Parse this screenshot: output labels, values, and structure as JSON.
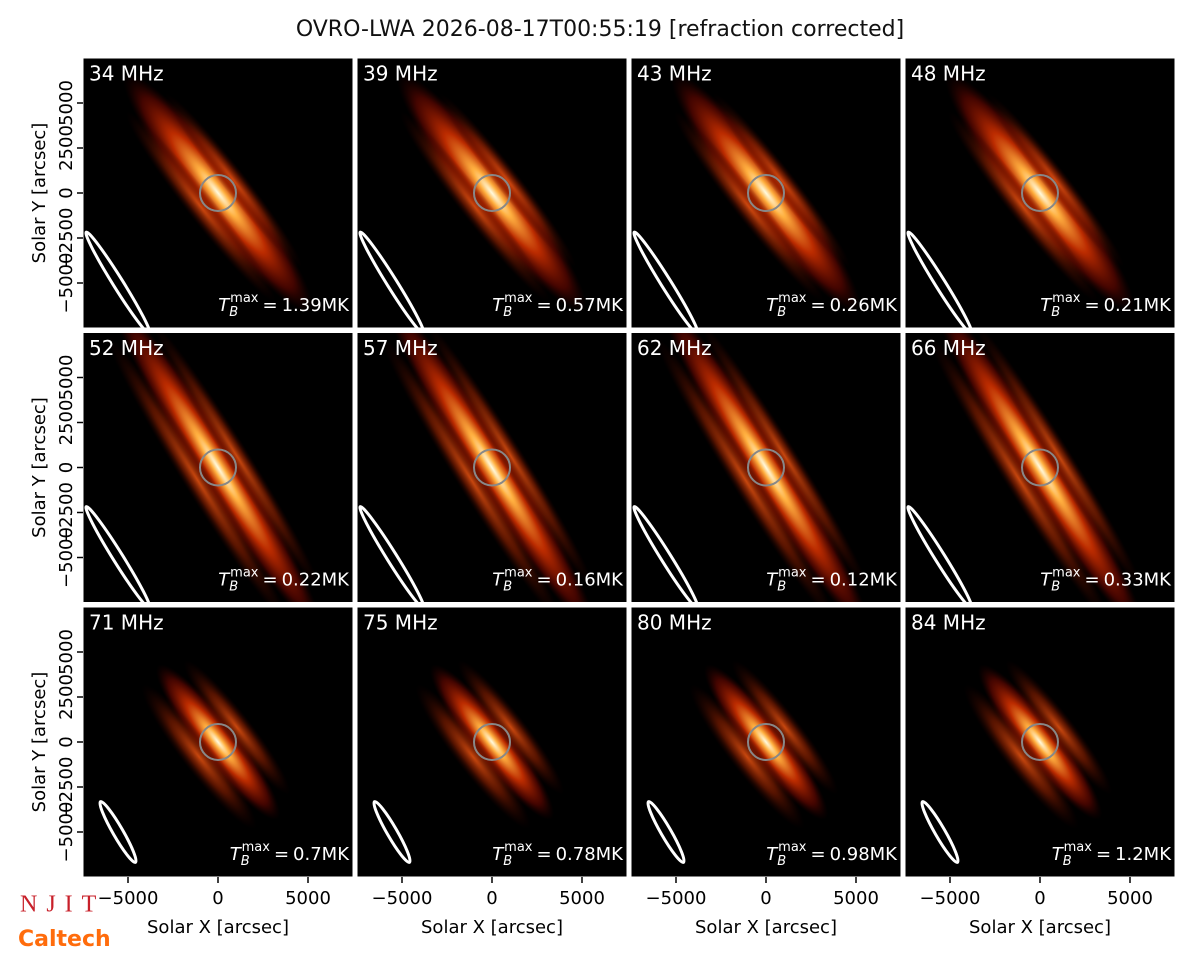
{
  "title": "OVRO-LWA 2026-08-17T00:55:19 [refraction corrected]",
  "logos": [
    "NJIT",
    "Caltech"
  ],
  "tmax_symbol": {
    "base": "T",
    "sub": "B",
    "sup": "max",
    "sep": "="
  },
  "chart_data": [
    {
      "type": "image",
      "label": "34 MHz",
      "tmax": "1.39MK"
    },
    {
      "type": "image",
      "label": "39 MHz",
      "tmax": "0.57MK"
    },
    {
      "type": "image",
      "label": "43 MHz",
      "tmax": "0.26MK"
    },
    {
      "type": "image",
      "label": "48 MHz",
      "tmax": "0.21MK"
    },
    {
      "type": "image",
      "label": "52 MHz",
      "tmax": "0.22MK"
    },
    {
      "type": "image",
      "label": "57 MHz",
      "tmax": "0.16MK"
    },
    {
      "type": "image",
      "label": "62 MHz",
      "tmax": "0.12MK"
    },
    {
      "type": "image",
      "label": "66 MHz",
      "tmax": "0.33MK"
    },
    {
      "type": "image",
      "label": "71 MHz",
      "tmax": "0.7MK"
    },
    {
      "type": "image",
      "label": "75 MHz",
      "tmax": "0.78MK"
    },
    {
      "type": "image",
      "label": "80 MHz",
      "tmax": "0.98MK"
    },
    {
      "type": "image",
      "label": "84 MHz",
      "tmax": "1.2MK"
    }
  ],
  "axes": {
    "xlabel": "Solar X [arcsec]",
    "ylabel": "Solar Y [arcsec]",
    "xlim": [
      -7500,
      7500
    ],
    "ylim": [
      -7500,
      7500
    ],
    "xticks": [
      {
        "value": -5000,
        "label": "−5000"
      },
      0,
      5000
    ],
    "yticks": [
      {
        "value": -5000,
        "label": "−5000"
      },
      {
        "value": -2500,
        "label": "−2500"
      },
      0,
      2500,
      5000
    ]
  }
}
